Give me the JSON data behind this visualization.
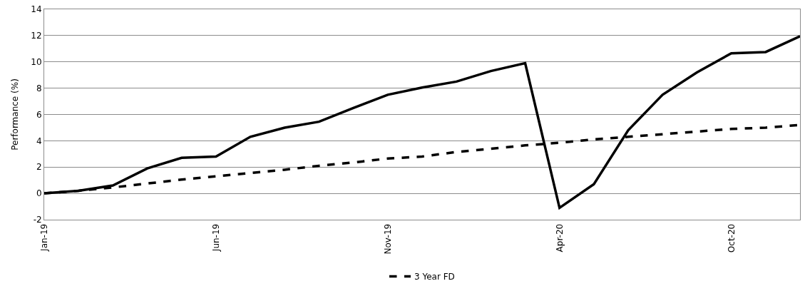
{
  "chart_data": {
    "type": "line",
    "ylabel": "Performance (%)",
    "categories": [
      "Jan-19",
      null,
      null,
      null,
      null,
      "Jun-19",
      null,
      null,
      null,
      null,
      "Nov-19",
      null,
      null,
      null,
      null,
      "Apr-20",
      null,
      null,
      null,
      null,
      "Oct-20",
      null,
      null
    ],
    "series": [
      {
        "color": "#000000",
        "line_style": "solid",
        "values": [
          0,
          0.2,
          0.6,
          1.9,
          2.7,
          2.8,
          4.3,
          5.0,
          5.45,
          6.5,
          7.5,
          8.05,
          8.5,
          9.3,
          9.9,
          -1.1,
          0.7,
          4.8,
          7.5,
          9.2,
          10.65,
          10.75,
          11.95
        ]
      },
      {
        "name": "3 Year FD",
        "color": "#000000",
        "line_style": "dashed",
        "values": [
          0,
          0.2,
          0.45,
          0.75,
          1.05,
          1.3,
          1.55,
          1.8,
          2.1,
          2.35,
          2.65,
          2.8,
          3.15,
          3.4,
          3.65,
          3.85,
          4.1,
          4.3,
          4.5,
          4.7,
          4.9,
          5.0,
          5.2
        ]
      }
    ],
    "ylim": [
      -2,
      14
    ],
    "yticks": [
      -2,
      0,
      2,
      4,
      6,
      8,
      10,
      12,
      14
    ],
    "grid": "y",
    "legend": "bottom",
    "marker": "none"
  }
}
